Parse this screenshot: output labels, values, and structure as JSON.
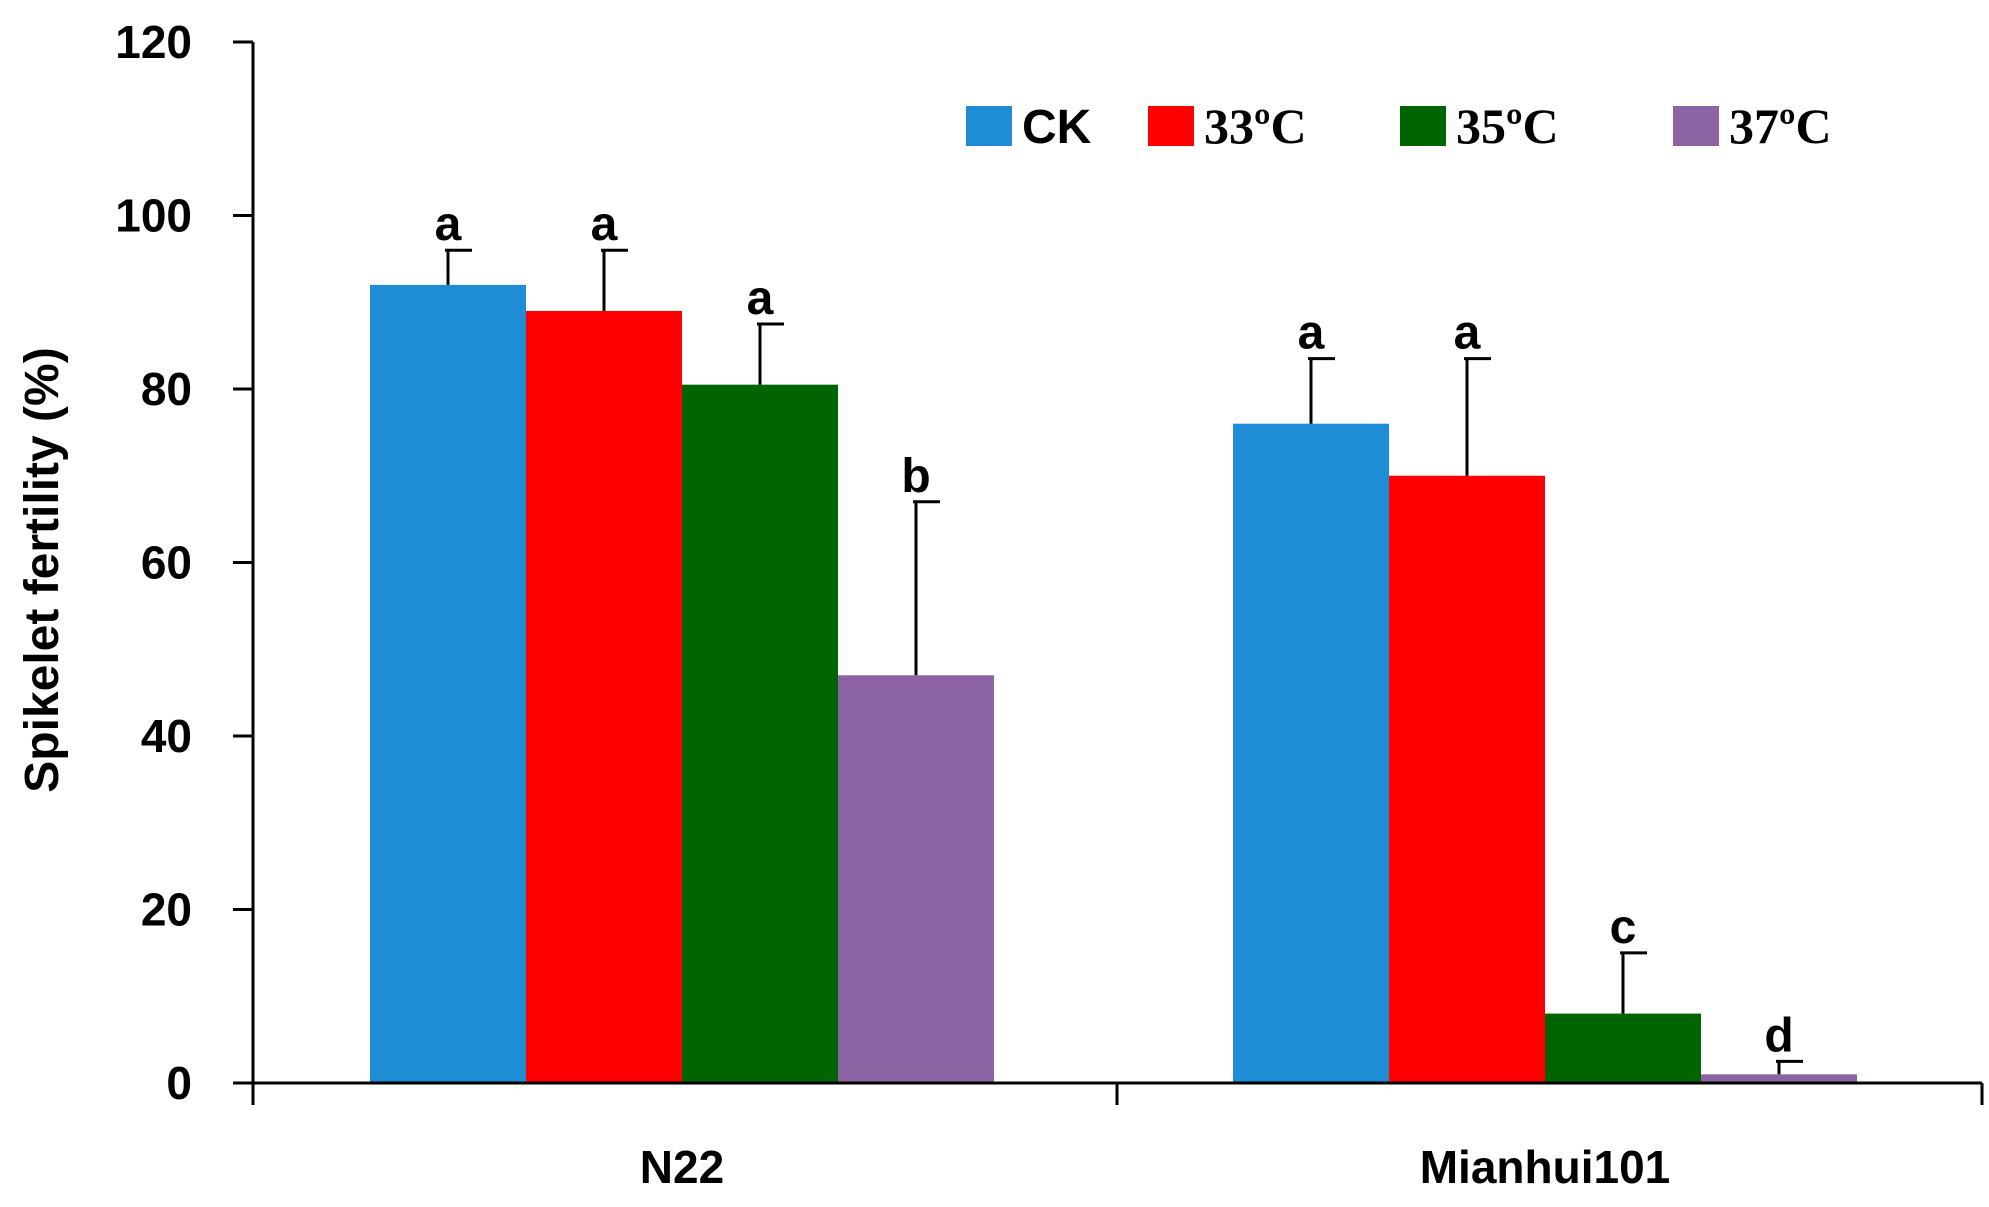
{
  "chart_data": {
    "type": "bar",
    "title": "",
    "xlabel": "",
    "ylabel": "Spikelet fertility (%)",
    "ylim": [
      0,
      120
    ],
    "yticks": [
      "0",
      "20",
      "40",
      "60",
      "80",
      "100",
      "120"
    ],
    "categories": [
      "N22",
      "Mianhui101"
    ],
    "legend_position": "top-right",
    "series": [
      {
        "name": "CK",
        "color": "#1F8DD6",
        "values": [
          92,
          76
        ],
        "errors": [
          4,
          7.5
        ],
        "labels": [
          "a",
          "a"
        ]
      },
      {
        "name": "33ºC",
        "color": "#FF0000",
        "values": [
          89,
          70
        ],
        "errors": [
          7,
          13.5
        ],
        "labels": [
          "a",
          "a"
        ]
      },
      {
        "name": "35ºC",
        "color": "#006400",
        "values": [
          80.5,
          8
        ],
        "errors": [
          7,
          7
        ],
        "labels": [
          "a",
          "c"
        ]
      },
      {
        "name": "37ºC",
        "color": "#8C64A4",
        "values": [
          47,
          1
        ],
        "errors": [
          20,
          1.5
        ],
        "labels": [
          "b",
          "d"
        ]
      }
    ],
    "grid": false
  }
}
